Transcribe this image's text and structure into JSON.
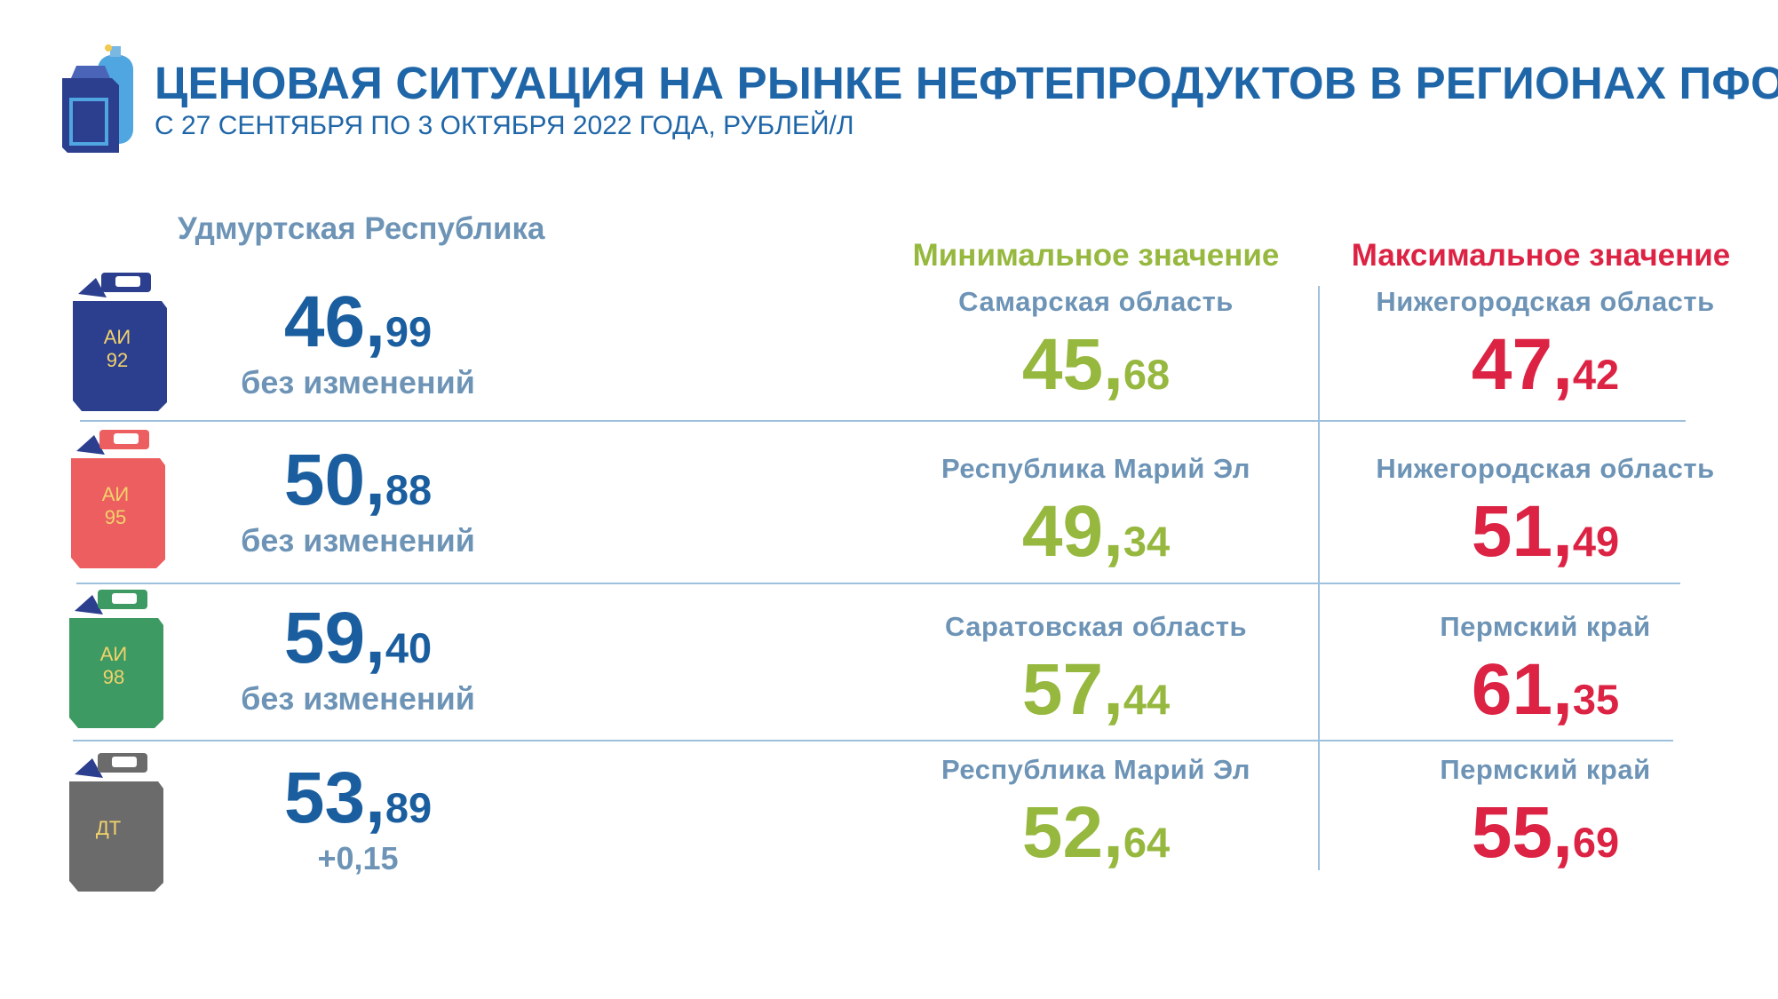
{
  "header": {
    "title": "ЦЕНОВАЯ СИТУАЦИЯ НА РЫНКЕ НЕФТЕПРОДУКТОВ В РЕГИОНАХ ПФО",
    "subtitle": "С 27 СЕНТЯБРЯ ПО 3 ОКТЯБРЯ 2022 ГОДА, РУБЛЕЙ/Л"
  },
  "region_heading": "Удмуртская Республика",
  "columns": {
    "min_label": "Минимальное значение",
    "max_label": "Максимальное значение"
  },
  "colors": {
    "accent_blue": "#1f66a8",
    "min_green": "#96b83f",
    "max_red": "#dc2344",
    "region_gray_blue": "#6d94b6"
  },
  "fuels": [
    {
      "can_line1": "АИ",
      "can_line2": "92",
      "can_color": "#2c3f8f",
      "udm_int": "46,",
      "udm_frac": "99",
      "change": "без изменений",
      "min_region": "Самарская область",
      "min_int": "45,",
      "min_frac": "68",
      "max_region": "Нижегородская область",
      "max_int": "47,",
      "max_frac": "42"
    },
    {
      "can_line1": "АИ",
      "can_line2": "95",
      "can_color": "#ec5e60",
      "udm_int": "50,",
      "udm_frac": "88",
      "change": "без изменений",
      "min_region": "Республика Марий Эл",
      "min_int": "49,",
      "min_frac": "34",
      "max_region": "Нижегородская область",
      "max_int": "51,",
      "max_frac": "49"
    },
    {
      "can_line1": "АИ",
      "can_line2": "98",
      "can_color": "#3d9a62",
      "udm_int": "59,",
      "udm_frac": "40",
      "change": "без изменений",
      "min_region": "Саратовская область",
      "min_int": "57,",
      "min_frac": "44",
      "max_region": "Пермский край",
      "max_int": "61,",
      "max_frac": "35"
    },
    {
      "can_line1": "ДТ",
      "can_line2": "",
      "can_color": "#6b6b6b",
      "udm_int": "53,",
      "udm_frac": "89",
      "change": "+0,15",
      "min_region": "Республика Марий Эл",
      "min_int": "52,",
      "min_frac": "64",
      "max_region": "Пермский край",
      "max_int": "55,",
      "max_frac": "69"
    }
  ]
}
